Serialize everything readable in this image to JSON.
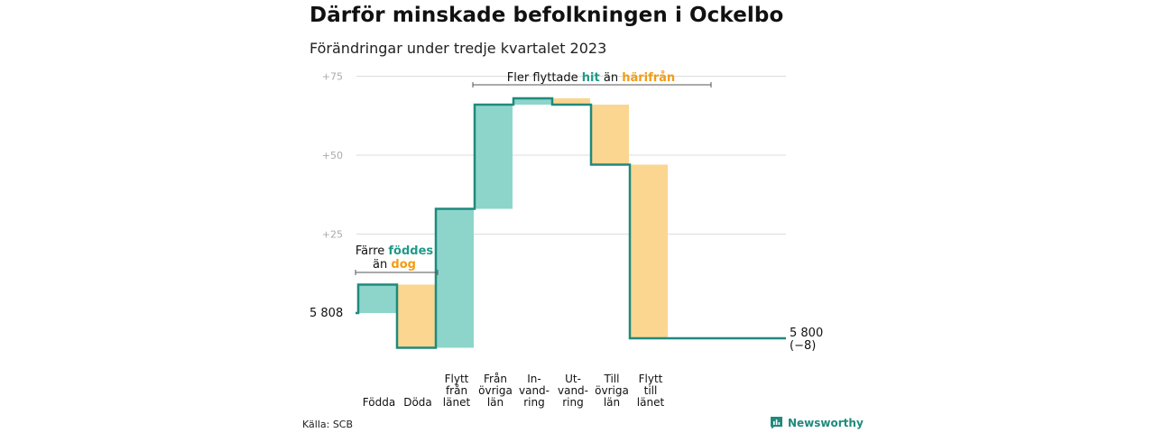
{
  "title": "Därför minskade befolkningen i Ockelbo",
  "subtitle": "Förändringar under tredje kvartalet 2023",
  "source": "Källa: SCB",
  "brand": "Newsworthy",
  "colors": {
    "in_fill": "#8dd5cb",
    "out_fill": "#fbd690",
    "line": "#1f8a7d",
    "grid": "#dddddd"
  },
  "labels": {
    "start": "5  808",
    "end": "5 800",
    "end_change": "(−8)"
  },
  "annotations": {
    "births": {
      "line1": "Färre ",
      "word1": "föddes",
      "line2": "än ",
      "word2": "dog"
    },
    "moves": {
      "prefix": "Fler flyttade ",
      "word1": "hit",
      "mid": " än ",
      "word2": "härifrån"
    }
  },
  "chart_data": {
    "type": "waterfall",
    "start_value": 5808,
    "end_value": 5800,
    "net_change": -8,
    "y_ticks": [
      "+25",
      "+50",
      "+75"
    ],
    "ylim": [
      -12,
      75
    ],
    "steps": [
      {
        "label": [
          "Födda"
        ],
        "change": 9,
        "kind": "in"
      },
      {
        "label": [
          "Döda"
        ],
        "change": -20,
        "kind": "out"
      },
      {
        "label": [
          "Flytt",
          "från",
          "länet"
        ],
        "change": 44,
        "kind": "in"
      },
      {
        "label": [
          "Från",
          "övriga",
          "län"
        ],
        "change": 33,
        "kind": "in"
      },
      {
        "label": [
          "In-",
          "vand-",
          "ring"
        ],
        "change": 2,
        "kind": "in"
      },
      {
        "label": [
          "Ut-",
          "vand-",
          "ring"
        ],
        "change": -2,
        "kind": "out"
      },
      {
        "label": [
          "Till",
          "övriga",
          "län"
        ],
        "change": -19,
        "kind": "out"
      },
      {
        "label": [
          "Flytt",
          "till",
          "länet"
        ],
        "change": -55,
        "kind": "out"
      }
    ]
  }
}
